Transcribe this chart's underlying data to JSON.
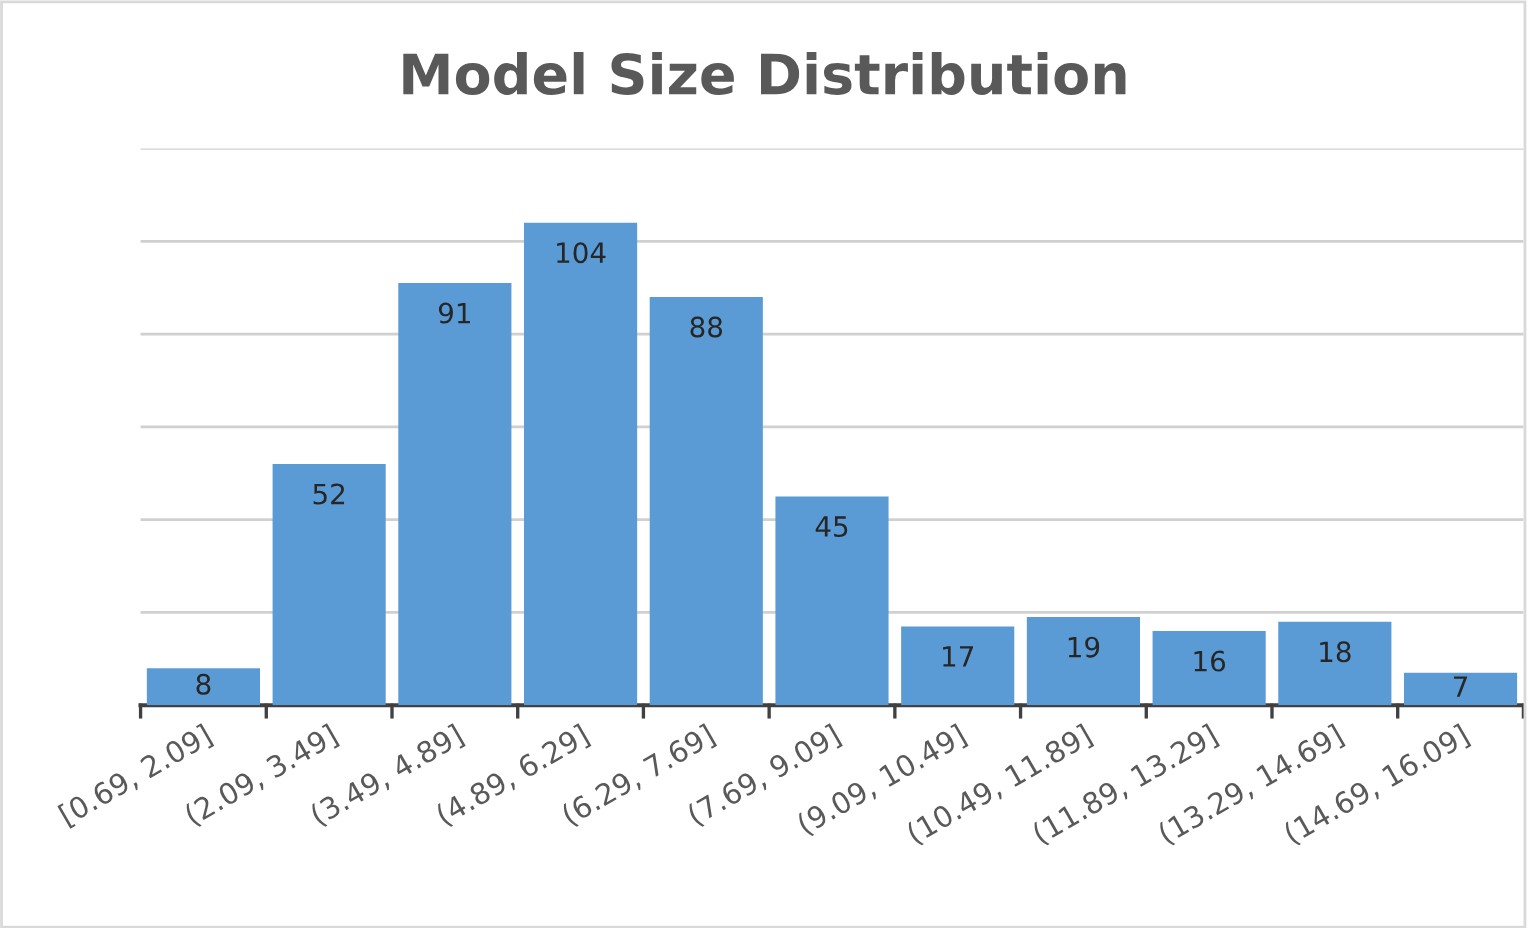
{
  "chart_data": {
    "type": "bar",
    "title": "Model Size Distribution",
    "categories": [
      "[0.69, 2.09]",
      "(2.09, 3.49]",
      "(3.49, 4.89]",
      "(4.89, 6.29]",
      "(6.29, 7.69]",
      "(7.69, 9.09]",
      "(9.09, 10.49]",
      "(10.49, 11.89]",
      "(11.89, 13.29]",
      "(13.29, 14.69]",
      "(14.69, 16.09]"
    ],
    "values": [
      8,
      52,
      91,
      104,
      88,
      45,
      17,
      19,
      16,
      18,
      7
    ],
    "color": "#5b9bd5",
    "ylim": [
      0,
      120
    ],
    "yticks": [
      {
        "value": 0,
        "label": null
      },
      {
        "value": 20,
        "label": null
      },
      {
        "value": 40,
        "label": null
      },
      {
        "value": 60,
        "label": null
      },
      {
        "value": 80,
        "label": null
      },
      {
        "value": 100,
        "label": null
      },
      {
        "value": 120,
        "label": null
      }
    ],
    "tick_labels": "x",
    "grid": "y",
    "data_labels": true,
    "legend": false
  }
}
